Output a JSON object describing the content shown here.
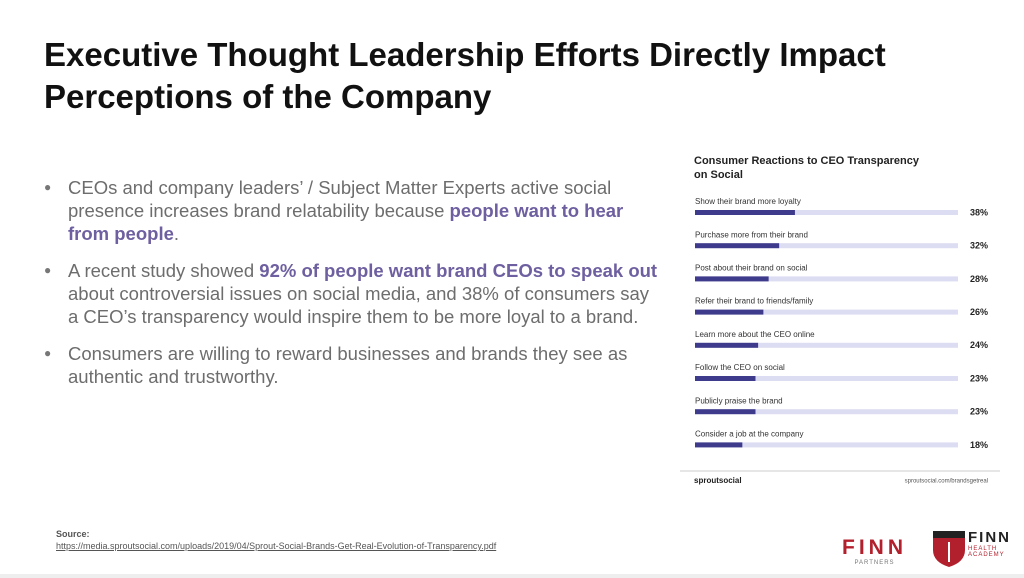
{
  "title": "Executive Thought Leadership Efforts Directly Impact Perceptions of the Company",
  "bullets": [
    {
      "segments": [
        {
          "text": "CEOs and company leaders’ / Subject Matter Experts active social presence increases brand relatability because ",
          "bold": false
        },
        {
          "text": "people want to hear from people",
          "bold": true
        },
        {
          "text": ".",
          "bold": false
        }
      ]
    },
    {
      "segments": [
        {
          "text": "A recent study showed ",
          "bold": false
        },
        {
          "text": "92% of people want brand CEOs to speak out",
          "bold": true
        },
        {
          "text": " about controversial issues on social media, and 38% of consumers say a CEO’s transparency would inspire them to be more loyal to a brand.",
          "bold": false
        }
      ]
    },
    {
      "segments": [
        {
          "text": "Consumers are willing to reward businesses and brands they see as authentic and trustworthy.",
          "bold": false
        }
      ]
    }
  ],
  "chart_data": {
    "type": "bar",
    "orientation": "horizontal",
    "title": "Consumer Reactions to CEO Transparency on Social",
    "categories": [
      "Show their brand more loyalty",
      "Purchase more from their brand",
      "Post about their brand on social",
      "Refer their brand to friends/family",
      "Learn more about the CEO online",
      "Follow the CEO on social",
      "Publicly praise the brand",
      "Consider a job at the company"
    ],
    "values": [
      38,
      32,
      28,
      26,
      24,
      23,
      23,
      18
    ],
    "value_labels": [
      "38%",
      "32%",
      "28%",
      "26%",
      "24%",
      "23%",
      "23%",
      "18%"
    ],
    "xlim": [
      0,
      100
    ],
    "color": "#3f3b8c",
    "track_color": "#dcdcf2",
    "brand": "sproutsocial",
    "url": "sproutsocial.com/brandsgetreal"
  },
  "source": {
    "label": "Source:",
    "url": "https://media.sproutsocial.com/uploads/2019/04/Sprout-Social-Brands-Get-Real-Evolution-of-Transparency.pdf"
  },
  "logos": [
    {
      "name": "FINN",
      "sub": "PARTNERS"
    },
    {
      "name": "FINN",
      "sub": "HEALTH ACADEMY"
    }
  ]
}
